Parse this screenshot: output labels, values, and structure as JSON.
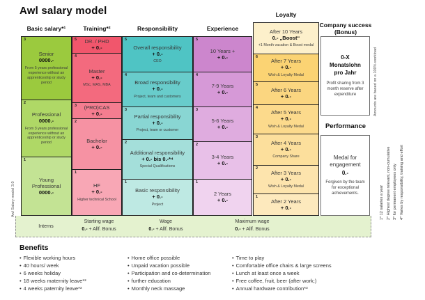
{
  "title": "Awl salary model",
  "version_label": "Awl Salary model 3.0",
  "columns": [
    {
      "id": "basic-salary",
      "header": "Basic salary*¹",
      "cells": [
        {
          "num": "3",
          "title": "Senior",
          "amount": "0000.-",
          "subtitle": "From 5 years professional experience without an apprenticeship or study period",
          "color": "#9bca3e"
        },
        {
          "num": "2",
          "title": "Professional",
          "amount": "0000.-",
          "subtitle": "From 3 years professional experience without an apprenticeship or study period",
          "color": "#afd866"
        },
        {
          "num": "1",
          "title": "Young Professional",
          "amount": "0000.-",
          "subtitle": "",
          "color": "#c3e394"
        }
      ]
    },
    {
      "id": "training",
      "header": "Training*²",
      "cells": [
        {
          "num": "5",
          "title": "DR. / PHD",
          "amount": "+ 0.-",
          "subtitle": "",
          "color": "#f1566c"
        },
        {
          "num": "4",
          "title": "Master",
          "amount": "+ 0.-",
          "subtitle": "MSc, MAS, MBA",
          "color": "#f36a7e"
        },
        {
          "num": "3",
          "title": "(PRO)CAS",
          "amount": "+ 0.-",
          "subtitle": "",
          "color": "#f47d90"
        },
        {
          "num": "2",
          "title": "Bachelor",
          "amount": "+ 0.-",
          "subtitle": "",
          "color": "#f692a3"
        },
        {
          "num": "1",
          "title": "HF",
          "amount": "+ 0.-",
          "subtitle": "Higher technical School",
          "color": "#f8a7b5"
        }
      ]
    },
    {
      "id": "responsibility",
      "header": "Responsibility",
      "cells": [
        {
          "num": "5",
          "title": "Overall responsibility",
          "amount": "+ 0.-",
          "subtitle": "CEO",
          "color": "#4fc4c4"
        },
        {
          "num": "4",
          "title": "Broad responsibility",
          "amount": "+ 0.-",
          "subtitle": "Project, team and customers",
          "color": "#68cccb"
        },
        {
          "num": "3",
          "title": "Partial responsibility",
          "amount": "+ 0.-",
          "subtitle": "Project, team or customer",
          "color": "#89d6d3"
        },
        {
          "num": "2",
          "title": "Additional responsibility",
          "amount": "+ 0.- bis 0.-*⁴",
          "subtitle": "Special Qualifications",
          "color": "#a4dfda"
        },
        {
          "num": "1",
          "title": "Basic responsibility",
          "amount": "+ 0.-",
          "subtitle": "Project",
          "color": "#bee9e3"
        }
      ]
    },
    {
      "id": "experience",
      "header": "Experience",
      "cells": [
        {
          "num": "5",
          "title": "10 Years +",
          "amount": "+ 0.-",
          "subtitle": "",
          "color": "#cc86cd"
        },
        {
          "num": "4",
          "title": "7-9 Years",
          "amount": "+ 0.-",
          "subtitle": "",
          "color": "#d699d7"
        },
        {
          "num": "3",
          "title": "5-6 Years",
          "amount": "+ 0.-",
          "subtitle": "",
          "color": "#dfacdf"
        },
        {
          "num": "2",
          "title": "3-4 Years",
          "amount": "+ 0.-",
          "subtitle": "",
          "color": "#e8c0e8"
        },
        {
          "num": "1",
          "title": "2 Years",
          "amount": "+ 0.-",
          "subtitle": "",
          "color": "#f0d3ef"
        }
      ]
    },
    {
      "id": "loyalty",
      "header": "Loyalty",
      "cells": [
        {
          "num": "",
          "title": "After 10 Years",
          "amount": "0.- „Boost“",
          "subtitle": "+1 Month vacation & Boost medal",
          "color": "#fdf0cb"
        },
        {
          "num": "6",
          "title": "After 7 Years",
          "amount": "+ 0.-",
          "subtitle": "Wish & Loyalty Medal",
          "color": "#fbd373"
        },
        {
          "num": "5",
          "title": "After 6 Years",
          "amount": "+ 0.-",
          "subtitle": "",
          "color": "#fbd680"
        },
        {
          "num": "4",
          "title": "After 5 Years",
          "amount": "+ 0.-",
          "subtitle": "Wish & Loyalty Medal",
          "color": "#fcda8c"
        },
        {
          "num": "3",
          "title": "After 4 Years",
          "amount": "+ 0.-",
          "subtitle": "Company Share",
          "color": "#fcdf9c"
        },
        {
          "num": "2",
          "title": "After 3 Years",
          "amount": "+ 0.-",
          "subtitle": "Wish & Loyalty Medal",
          "color": "#fde4ad"
        },
        {
          "num": "1",
          "title": "After 2 Years",
          "amount": "+ 0.-",
          "subtitle": "",
          "color": "#fde9bd"
        }
      ]
    }
  ],
  "company_success": {
    "header_line1": "Company success",
    "header_line2": "(Bonus)",
    "title": "0-X Monatslohn pro Jahr",
    "desc": "Profit sharing from 3 month reserve after expenditure",
    "side_note": "Amounts are based on a 100% workload"
  },
  "performance": {
    "header": "Performance",
    "title": "Medal for engagement",
    "amount": "0.-",
    "desc": "Forgiven by the team for exceptional achievements."
  },
  "footnotes": [
    "1* 12 salaries a year",
    "2* Highest degree relevant, non-cumulative",
    "3* for permanent employees only",
    "4* Varies by responsibility, training and effort"
  ],
  "bottom_band": {
    "items": [
      {
        "label": "Interns",
        "amount": "",
        "suffix": ""
      },
      {
        "label": "Starting wage",
        "amount": "0.-",
        "suffix": " + Allf. Bonus"
      },
      {
        "label": "Wage",
        "amount": "0.-",
        "suffix": " + Allf. Bonus"
      },
      {
        "label": "Maximum wage",
        "amount": "0.-",
        "suffix": " + Allf. Bonus"
      }
    ]
  },
  "benefits": {
    "header": "Benefits",
    "columns": [
      [
        "Flexible working hours",
        "40 hours/ week",
        "6 weeks holiday",
        "18 weeks maternity leave*³",
        "4 weeks paternity leave*³"
      ],
      [
        "Home office possible",
        "Unpaid vacation possible",
        "Participation and co-determination",
        "further education",
        "Monthly neck massage"
      ],
      [
        "Time to play",
        "Comfortable office chairs & large screens",
        "Lunch at least once a week",
        "Free coffee, fruit, beer (after work;)",
        "Annual hardware contribution*³"
      ]
    ]
  }
}
